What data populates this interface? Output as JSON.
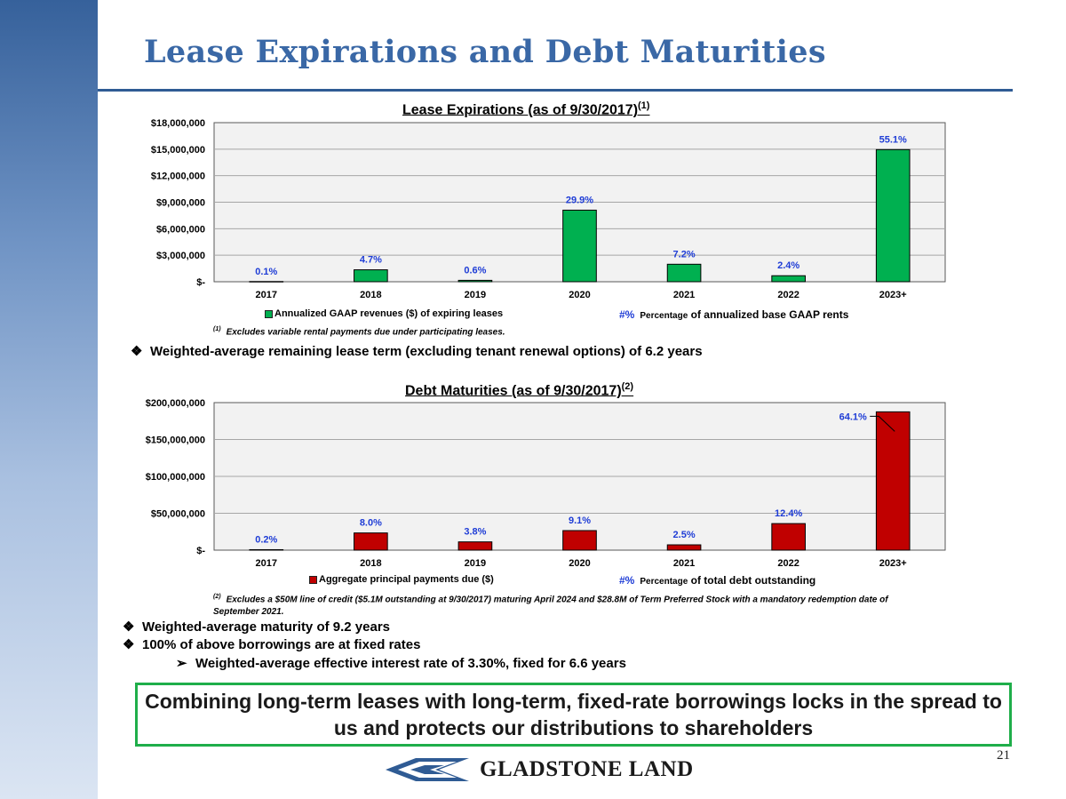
{
  "title": "Lease Expirations and Debt Maturities",
  "colors": {
    "brand_blue": "#3a68a6",
    "lease_bar": "#00b050",
    "debt_bar": "#c00000",
    "pct_label": "#1f3dd6",
    "callout_border": "#1fae4a"
  },
  "lease_chart": {
    "title": "Lease Expirations (as of 9/30/2017)",
    "title_sup": "(1)",
    "legend_series": "Annualized GAAP revenues ($) of expiring leases",
    "legend_pct_hash": "#%",
    "legend_pct_small": "Percentage",
    "legend_pct_rest": "of annualized base GAAP rents",
    "footnote_mark": "(1)",
    "footnote": "Excludes variable rental payments due under participating leases."
  },
  "debt_chart": {
    "title": "Debt Maturities (as of 9/30/2017)",
    "title_sup": "(2)",
    "legend_series": "Aggregate principal payments due ($)",
    "legend_pct_hash": "#%",
    "legend_pct_small": "Percentage",
    "legend_pct_rest": "of total debt outstanding",
    "footnote_mark": "(2)",
    "footnote": "Excludes a $50M line of credit ($5.1M outstanding at 9/30/2017) maturing April 2024 and $28.8M of Term Preferred Stock with a mandatory redemption date of September 2021."
  },
  "bullets": {
    "lease_term": "Weighted-average remaining lease term (excluding tenant renewal options) of 6.2 years",
    "maturity": "Weighted-average maturity of 9.2 years",
    "fixed": "100% of above borrowings are at fixed rates",
    "rate": "Weighted-average effective interest rate of 3.30%, fixed for 6.6 years"
  },
  "callout": "Combining long-term leases with long-term, fixed-rate borrowings locks in the spread to us and protects our distributions to shareholders",
  "page_number": "21",
  "logo_text": "GLADSTONE LAND",
  "chart_data": [
    {
      "type": "bar",
      "title": "Lease Expirations (as of 9/30/2017)",
      "categories": [
        "2017",
        "2018",
        "2019",
        "2020",
        "2021",
        "2022",
        "2023+"
      ],
      "series": [
        {
          "name": "Annualized GAAP revenues ($) of expiring leases",
          "values": [
            25000,
            1350000,
            160000,
            8100000,
            1980000,
            680000,
            14950000
          ]
        }
      ],
      "data_labels": [
        "0.1%",
        "4.7%",
        "0.6%",
        "29.9%",
        "7.2%",
        "2.4%",
        "55.1%"
      ],
      "yticks": [
        "$-",
        "$3,000,000",
        "$6,000,000",
        "$9,000,000",
        "$12,000,000",
        "$15,000,000",
        "$18,000,000"
      ],
      "ylim": [
        0,
        18000000
      ],
      "grid": true,
      "legend": "bottom"
    },
    {
      "type": "bar",
      "title": "Debt Maturities (as of 9/30/2017)",
      "categories": [
        "2017",
        "2018",
        "2019",
        "2020",
        "2021",
        "2022",
        "2023+"
      ],
      "series": [
        {
          "name": "Aggregate principal payments due ($)",
          "values": [
            650000,
            23300000,
            11200000,
            26500000,
            7200000,
            36000000,
            187500000
          ]
        }
      ],
      "data_labels": [
        "0.2%",
        "8.0%",
        "3.8%",
        "9.1%",
        "2.5%",
        "12.4%",
        "64.1%"
      ],
      "yticks": [
        "$-",
        "$50,000,000",
        "$100,000,000",
        "$150,000,000",
        "$200,000,000"
      ],
      "ylim": [
        0,
        200000000
      ],
      "grid": true,
      "legend": "bottom"
    }
  ]
}
